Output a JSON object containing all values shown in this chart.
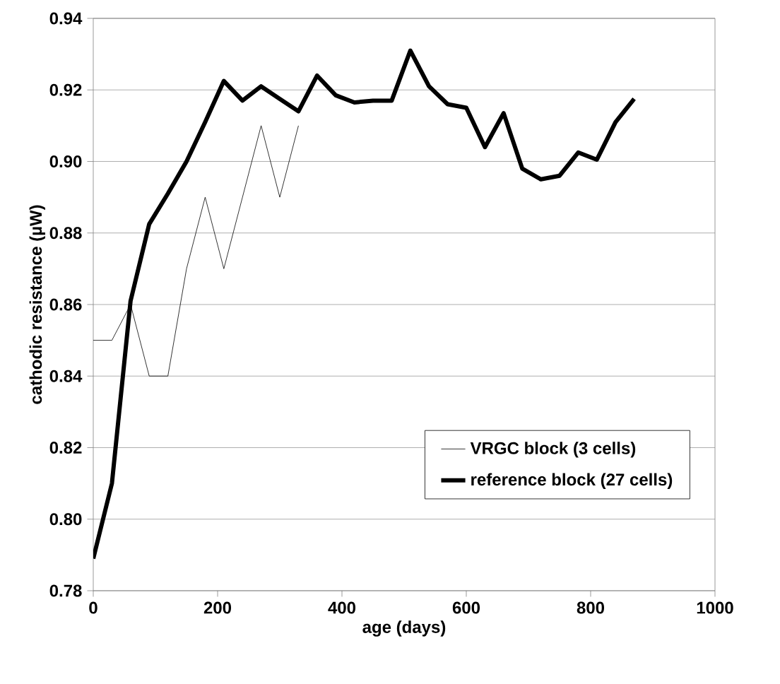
{
  "chart_data": {
    "type": "line",
    "xlabel": "age (days)",
    "ylabel": "cathodic resistance (µW)",
    "xlim": [
      0,
      1000
    ],
    "xticks": [
      0,
      200,
      400,
      600,
      800,
      1000
    ],
    "ylim": [
      0.78,
      0.94
    ],
    "yticks": [
      {
        "value": 0.78,
        "label": "0.78"
      },
      {
        "value": 0.8,
        "label": "0.80"
      },
      {
        "value": 0.82,
        "label": "0.82"
      },
      {
        "value": 0.84,
        "label": "0.84"
      },
      {
        "value": 0.86,
        "label": "0.86"
      },
      {
        "value": 0.88,
        "label": "0.88"
      },
      {
        "value": 0.9,
        "label": "0.90"
      },
      {
        "value": 0.92,
        "label": "0.92"
      },
      {
        "value": 0.94,
        "label": "0.94"
      }
    ],
    "grid": "y",
    "legend": "bottom right",
    "marker": "none",
    "series": [
      {
        "name": "VRGC block (3 cells)",
        "color": "#000000",
        "x": [
          0,
          30,
          60,
          90,
          120,
          150,
          180,
          210,
          240,
          270,
          300,
          330
        ],
        "values": [
          0.85,
          0.85,
          0.86,
          0.84,
          0.84,
          0.87,
          0.89,
          0.87,
          0.89,
          0.91,
          0.89,
          0.91
        ]
      },
      {
        "name": "reference block (27 cells)",
        "color": "#000000",
        "x": [
          0,
          30,
          60,
          90,
          120,
          150,
          180,
          210,
          240,
          270,
          300,
          330,
          360,
          390,
          420,
          450,
          480,
          510,
          540,
          570,
          600,
          630,
          660,
          690,
          720,
          750,
          780,
          810,
          840,
          870
        ],
        "values": [
          0.789,
          0.81,
          0.861,
          0.8825,
          0.891,
          0.9,
          0.911,
          0.9225,
          0.917,
          0.921,
          0.9175,
          0.914,
          0.924,
          0.9185,
          0.9165,
          0.917,
          0.917,
          0.931,
          0.921,
          0.916,
          0.915,
          0.904,
          0.9135,
          0.898,
          0.895,
          0.896,
          0.9025,
          0.9005,
          0.911,
          0.9175
        ]
      }
    ]
  }
}
